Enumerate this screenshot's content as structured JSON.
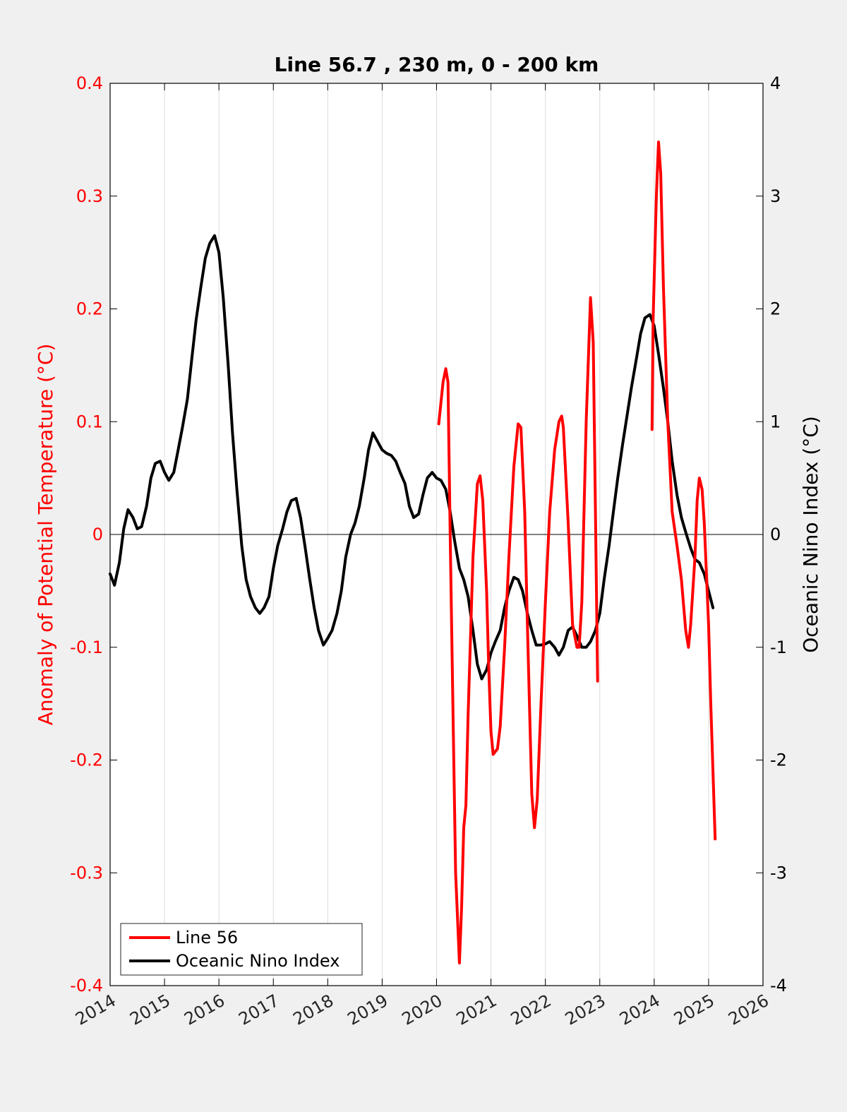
{
  "chart_data": {
    "type": "line",
    "title": "Line 56.7 , 230 m, 0 - 200 km",
    "ylabel_left": "Anomaly of Potential Temperature (°C)",
    "ylabel_right": "Oceanic Nino Index (°C)",
    "xlim": [
      2014,
      2026
    ],
    "ylim_left": [
      -0.4,
      0.4
    ],
    "ylim_right": [
      -4,
      4
    ],
    "x_ticks": [
      "2014",
      "2015",
      "2016",
      "2017",
      "2018",
      "2019",
      "2020",
      "2021",
      "2022",
      "2023",
      "2024",
      "2025",
      "2026"
    ],
    "y_left_ticks": [
      "-0.4",
      "-0.3",
      "-0.2",
      "-0.1",
      "0",
      "0.1",
      "0.2",
      "0.3",
      "0.4"
    ],
    "y_right_ticks": [
      "-4",
      "-3",
      "-2",
      "-1",
      "0",
      "1",
      "2",
      "3",
      "4"
    ],
    "grid": "x-only",
    "zero_line": true,
    "legend_position": "bottom-left",
    "colors": {
      "line56": "#ff0000",
      "oni": "#000000",
      "left_axis": "#ff0000",
      "right_axis": "#000000"
    },
    "series": [
      {
        "name": "Line 56",
        "axis": "left",
        "segments": [
          [
            [
              2020.04,
              0.098
            ],
            [
              2020.12,
              0.135
            ],
            [
              2020.17,
              0.147
            ],
            [
              2020.21,
              0.135
            ],
            [
              2020.25,
              0.0
            ],
            [
              2020.3,
              -0.15
            ],
            [
              2020.35,
              -0.3
            ],
            [
              2020.42,
              -0.38
            ],
            [
              2020.46,
              -0.33
            ],
            [
              2020.5,
              -0.26
            ],
            [
              2020.54,
              -0.24
            ],
            [
              2020.58,
              -0.16
            ],
            [
              2020.67,
              -0.02
            ],
            [
              2020.75,
              0.045
            ],
            [
              2020.8,
              0.052
            ],
            [
              2020.85,
              0.03
            ],
            [
              2020.92,
              -0.05
            ],
            [
              2020.96,
              -0.12
            ],
            [
              2021.0,
              -0.175
            ],
            [
              2021.04,
              -0.195
            ],
            [
              2021.12,
              -0.19
            ],
            [
              2021.17,
              -0.17
            ],
            [
              2021.25,
              -0.1
            ],
            [
              2021.33,
              -0.02
            ],
            [
              2021.42,
              0.06
            ],
            [
              2021.5,
              0.098
            ],
            [
              2021.55,
              0.095
            ],
            [
              2021.62,
              0.02
            ],
            [
              2021.67,
              -0.08
            ],
            [
              2021.75,
              -0.23
            ],
            [
              2021.8,
              -0.26
            ],
            [
              2021.85,
              -0.235
            ],
            [
              2021.92,
              -0.15
            ],
            [
              2022.0,
              -0.06
            ],
            [
              2022.08,
              0.02
            ],
            [
              2022.17,
              0.075
            ],
            [
              2022.25,
              0.1
            ],
            [
              2022.3,
              0.105
            ],
            [
              2022.33,
              0.095
            ],
            [
              2022.42,
              0.01
            ],
            [
              2022.5,
              -0.08
            ],
            [
              2022.58,
              -0.1
            ],
            [
              2022.62,
              -0.1
            ],
            [
              2022.67,
              -0.06
            ],
            [
              2022.75,
              0.1
            ],
            [
              2022.83,
              0.21
            ],
            [
              2022.88,
              0.17
            ],
            [
              2022.96,
              -0.13
            ]
          ],
          [
            [
              2023.96,
              0.093
            ],
            [
              2023.98,
              0.19
            ],
            [
              2024.04,
              0.3
            ],
            [
              2024.08,
              0.348
            ],
            [
              2024.12,
              0.32
            ],
            [
              2024.17,
              0.22
            ],
            [
              2024.25,
              0.1
            ],
            [
              2024.33,
              0.02
            ],
            [
              2024.42,
              -0.01
            ],
            [
              2024.5,
              -0.04
            ],
            [
              2024.58,
              -0.085
            ],
            [
              2024.63,
              -0.1
            ],
            [
              2024.67,
              -0.08
            ],
            [
              2024.75,
              -0.02
            ],
            [
              2024.79,
              0.03
            ],
            [
              2024.83,
              0.05
            ],
            [
              2024.88,
              0.04
            ],
            [
              2024.92,
              0.01
            ],
            [
              2025.0,
              -0.08
            ],
            [
              2025.04,
              -0.15
            ],
            [
              2025.12,
              -0.27
            ]
          ]
        ]
      },
      {
        "name": "Oceanic Nino Index",
        "axis": "right",
        "segments": [
          [
            [
              2014.0,
              -0.35
            ],
            [
              2014.08,
              -0.45
            ],
            [
              2014.17,
              -0.25
            ],
            [
              2014.25,
              0.05
            ],
            [
              2014.33,
              0.22
            ],
            [
              2014.42,
              0.15
            ],
            [
              2014.5,
              0.05
            ],
            [
              2014.58,
              0.07
            ],
            [
              2014.67,
              0.25
            ],
            [
              2014.75,
              0.5
            ],
            [
              2014.83,
              0.63
            ],
            [
              2014.92,
              0.65
            ],
            [
              2015.0,
              0.55
            ],
            [
              2015.08,
              0.48
            ],
            [
              2015.17,
              0.55
            ],
            [
              2015.25,
              0.75
            ],
            [
              2015.33,
              0.95
            ],
            [
              2015.42,
              1.2
            ],
            [
              2015.5,
              1.55
            ],
            [
              2015.58,
              1.9
            ],
            [
              2015.67,
              2.2
            ],
            [
              2015.75,
              2.45
            ],
            [
              2015.83,
              2.58
            ],
            [
              2015.92,
              2.65
            ],
            [
              2016.0,
              2.5
            ],
            [
              2016.08,
              2.1
            ],
            [
              2016.17,
              1.5
            ],
            [
              2016.25,
              0.9
            ],
            [
              2016.33,
              0.4
            ],
            [
              2016.42,
              -0.1
            ],
            [
              2016.5,
              -0.4
            ],
            [
              2016.58,
              -0.55
            ],
            [
              2016.67,
              -0.65
            ],
            [
              2016.75,
              -0.7
            ],
            [
              2016.83,
              -0.65
            ],
            [
              2016.92,
              -0.55
            ],
            [
              2017.0,
              -0.3
            ],
            [
              2017.08,
              -0.1
            ],
            [
              2017.17,
              0.05
            ],
            [
              2017.25,
              0.2
            ],
            [
              2017.33,
              0.3
            ],
            [
              2017.42,
              0.32
            ],
            [
              2017.5,
              0.15
            ],
            [
              2017.58,
              -0.1
            ],
            [
              2017.67,
              -0.4
            ],
            [
              2017.75,
              -0.65
            ],
            [
              2017.83,
              -0.85
            ],
            [
              2017.92,
              -0.98
            ],
            [
              2018.0,
              -0.92
            ],
            [
              2018.08,
              -0.85
            ],
            [
              2018.17,
              -0.7
            ],
            [
              2018.25,
              -0.5
            ],
            [
              2018.33,
              -0.2
            ],
            [
              2018.42,
              0.0
            ],
            [
              2018.5,
              0.1
            ],
            [
              2018.58,
              0.25
            ],
            [
              2018.67,
              0.5
            ],
            [
              2018.75,
              0.75
            ],
            [
              2018.83,
              0.9
            ],
            [
              2018.92,
              0.82
            ],
            [
              2019.0,
              0.75
            ],
            [
              2019.08,
              0.72
            ],
            [
              2019.17,
              0.7
            ],
            [
              2019.25,
              0.65
            ],
            [
              2019.33,
              0.55
            ],
            [
              2019.42,
              0.45
            ],
            [
              2019.5,
              0.25
            ],
            [
              2019.58,
              0.15
            ],
            [
              2019.67,
              0.18
            ],
            [
              2019.75,
              0.35
            ],
            [
              2019.83,
              0.5
            ],
            [
              2019.92,
              0.55
            ],
            [
              2020.0,
              0.5
            ],
            [
              2020.08,
              0.48
            ],
            [
              2020.17,
              0.4
            ],
            [
              2020.25,
              0.2
            ],
            [
              2020.33,
              -0.05
            ],
            [
              2020.42,
              -0.3
            ],
            [
              2020.5,
              -0.4
            ],
            [
              2020.58,
              -0.55
            ],
            [
              2020.67,
              -0.85
            ],
            [
              2020.75,
              -1.15
            ],
            [
              2020.83,
              -1.28
            ],
            [
              2020.92,
              -1.2
            ],
            [
              2021.0,
              -1.05
            ],
            [
              2021.08,
              -0.95
            ],
            [
              2021.17,
              -0.85
            ],
            [
              2021.25,
              -0.65
            ],
            [
              2021.33,
              -0.5
            ],
            [
              2021.42,
              -0.38
            ],
            [
              2021.5,
              -0.4
            ],
            [
              2021.58,
              -0.5
            ],
            [
              2021.67,
              -0.7
            ],
            [
              2021.75,
              -0.85
            ],
            [
              2021.83,
              -0.98
            ],
            [
              2021.92,
              -0.98
            ],
            [
              2022.0,
              -0.97
            ],
            [
              2022.08,
              -0.95
            ],
            [
              2022.17,
              -1.0
            ],
            [
              2022.25,
              -1.07
            ],
            [
              2022.33,
              -1.0
            ],
            [
              2022.42,
              -0.85
            ],
            [
              2022.5,
              -0.82
            ],
            [
              2022.58,
              -0.9
            ],
            [
              2022.67,
              -1.0
            ],
            [
              2022.75,
              -1.0
            ],
            [
              2022.83,
              -0.95
            ],
            [
              2022.92,
              -0.85
            ],
            [
              2023.0,
              -0.7
            ],
            [
              2023.08,
              -0.4
            ],
            [
              2023.17,
              -0.1
            ],
            [
              2023.25,
              0.2
            ],
            [
              2023.33,
              0.5
            ],
            [
              2023.42,
              0.8
            ],
            [
              2023.5,
              1.05
            ],
            [
              2023.58,
              1.3
            ],
            [
              2023.67,
              1.55
            ],
            [
              2023.75,
              1.78
            ],
            [
              2023.83,
              1.92
            ],
            [
              2023.92,
              1.95
            ],
            [
              2024.0,
              1.85
            ],
            [
              2024.08,
              1.6
            ],
            [
              2024.17,
              1.3
            ],
            [
              2024.25,
              1.0
            ],
            [
              2024.33,
              0.65
            ],
            [
              2024.42,
              0.35
            ],
            [
              2024.5,
              0.15
            ],
            [
              2024.58,
              0.02
            ],
            [
              2024.67,
              -0.12
            ],
            [
              2024.75,
              -0.22
            ],
            [
              2024.83,
              -0.25
            ],
            [
              2024.92,
              -0.35
            ],
            [
              2025.0,
              -0.5
            ],
            [
              2025.08,
              -0.65
            ]
          ]
        ]
      }
    ]
  }
}
